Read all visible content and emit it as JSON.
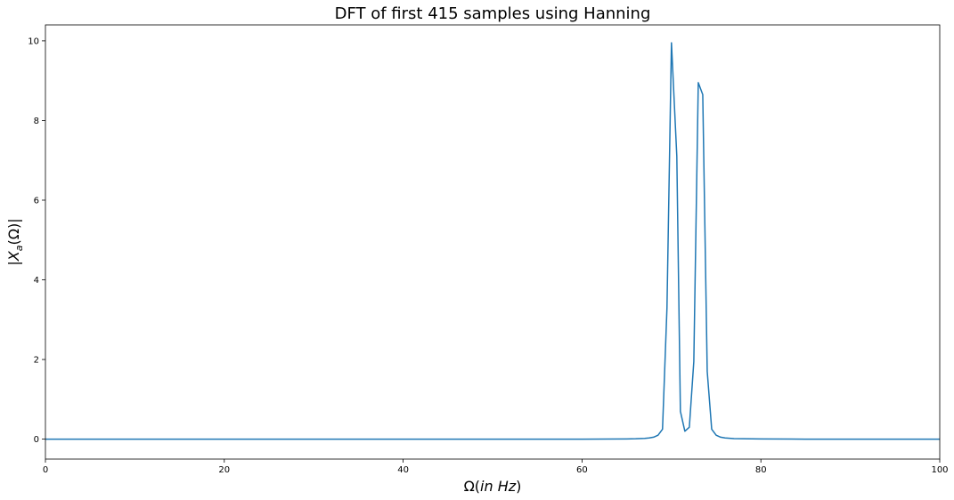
{
  "chart_data": {
    "type": "line",
    "title": "DFT of first 415 samples using Hanning",
    "xlabel": {
      "prefix": "Ω(",
      "italic": "in Hz",
      "suffix": ")"
    },
    "ylabel": {
      "left": "|",
      "var": "X",
      "sub": "a",
      "arg": "(Ω)",
      "right": "|"
    },
    "xlim": [
      0,
      100
    ],
    "ylim": [
      -0.5,
      10.4
    ],
    "xticks": [
      0,
      20,
      40,
      60,
      80,
      100
    ],
    "yticks": [
      0,
      2,
      4,
      6,
      8,
      10
    ],
    "grid": false,
    "series": [
      {
        "color": "#1f77b4",
        "points": [
          [
            0,
            0
          ],
          [
            10,
            0
          ],
          [
            20,
            0
          ],
          [
            30,
            0
          ],
          [
            40,
            0
          ],
          [
            50,
            0
          ],
          [
            60,
            0
          ],
          [
            65,
            0.005
          ],
          [
            66,
            0.01
          ],
          [
            67,
            0.02
          ],
          [
            67.5,
            0.03
          ],
          [
            68,
            0.05
          ],
          [
            68.5,
            0.1
          ],
          [
            69,
            0.25
          ],
          [
            69.5,
            3.3
          ],
          [
            70,
            9.95
          ],
          [
            70.6,
            7.1
          ],
          [
            71,
            0.7
          ],
          [
            71.5,
            0.2
          ],
          [
            72,
            0.3
          ],
          [
            72.5,
            1.95
          ],
          [
            73,
            8.95
          ],
          [
            73.5,
            8.65
          ],
          [
            74,
            1.7
          ],
          [
            74.5,
            0.25
          ],
          [
            75,
            0.1
          ],
          [
            75.5,
            0.05
          ],
          [
            76,
            0.03
          ],
          [
            77,
            0.015
          ],
          [
            78,
            0.01
          ],
          [
            80,
            0.005
          ],
          [
            85,
            0
          ],
          [
            90,
            0
          ],
          [
            100,
            0
          ]
        ]
      }
    ]
  }
}
